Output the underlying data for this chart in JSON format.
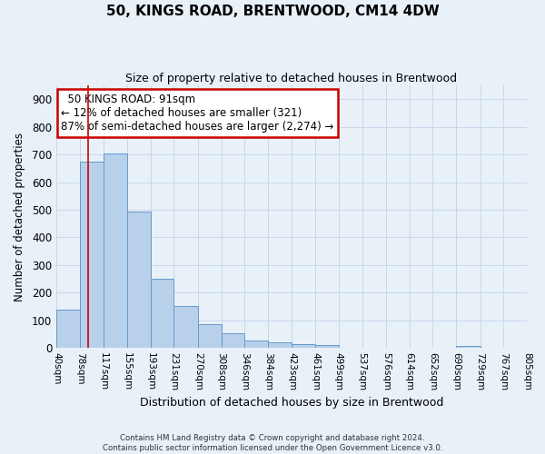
{
  "title": "50, KINGS ROAD, BRENTWOOD, CM14 4DW",
  "subtitle": "Size of property relative to detached houses in Brentwood",
  "xlabel": "Distribution of detached houses by size in Brentwood",
  "ylabel": "Number of detached properties",
  "bin_edges": [
    40,
    78,
    117,
    155,
    193,
    231,
    270,
    308,
    346,
    384,
    423,
    461,
    499,
    537,
    576,
    614,
    652,
    690,
    729,
    767,
    805
  ],
  "bin_labels": [
    "40sqm",
    "78sqm",
    "117sqm",
    "155sqm",
    "193sqm",
    "231sqm",
    "270sqm",
    "308sqm",
    "346sqm",
    "384sqm",
    "423sqm",
    "461sqm",
    "499sqm",
    "537sqm",
    "576sqm",
    "614sqm",
    "652sqm",
    "690sqm",
    "729sqm",
    "767sqm",
    "805sqm"
  ],
  "bar_heights": [
    138,
    675,
    705,
    493,
    251,
    150,
    87,
    52,
    28,
    20,
    12,
    10,
    0,
    0,
    0,
    0,
    0,
    8,
    0,
    0
  ],
  "bar_color": "#b8d0ea",
  "bar_edge_color": "#6699cc",
  "property_line_x": 91,
  "property_line_color": "#cc0000",
  "annotation_title": "50 KINGS ROAD: 91sqm",
  "annotation_line1": "← 12% of detached houses are smaller (321)",
  "annotation_line2": "87% of semi-detached houses are larger (2,274) →",
  "annotation_box_color": "#cc0000",
  "ylim": [
    0,
    950
  ],
  "yticks": [
    0,
    100,
    200,
    300,
    400,
    500,
    600,
    700,
    800,
    900
  ],
  "grid_color": "#c8d8ea",
  "background_color": "#e8f0f8",
  "footer_line1": "Contains HM Land Registry data © Crown copyright and database right 2024.",
  "footer_line2": "Contains public sector information licensed under the Open Government Licence v3.0."
}
